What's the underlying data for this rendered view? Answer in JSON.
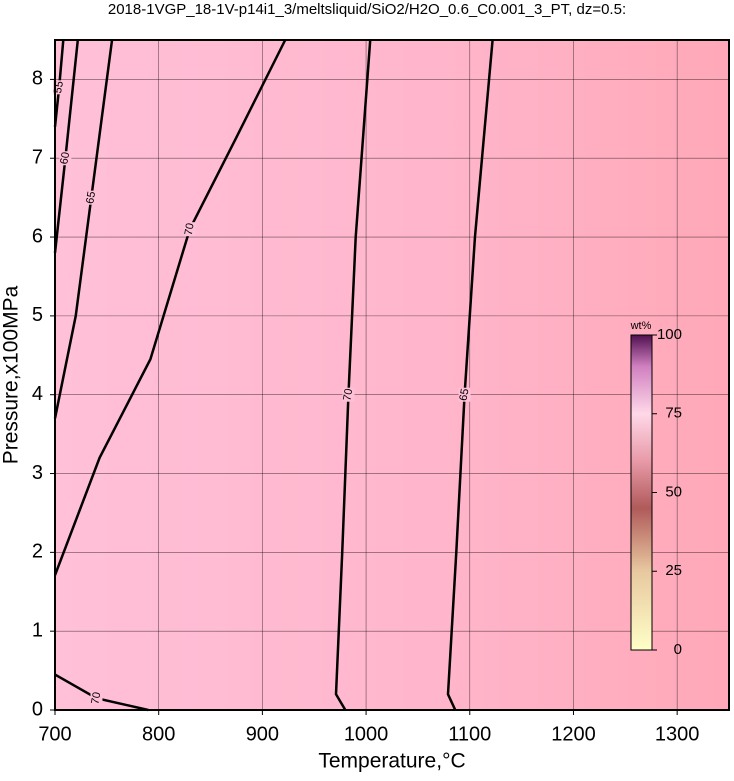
{
  "chart_data": {
    "type": "contour",
    "title": "2018-1VGP_18-1V-p14i1_3/meltsliquid/SiO2/H2O_0.6_C0.001_3_PT, dz=0.5:",
    "xlabel": "Temperature,°C",
    "ylabel": "Pressure,x100MPa",
    "xlim": [
      700,
      1350
    ],
    "ylim": [
      0,
      8.5
    ],
    "xticks": [
      700,
      800,
      900,
      1000,
      1100,
      1200,
      1300
    ],
    "yticks": [
      0,
      1,
      2,
      3,
      4,
      5,
      6,
      7,
      8
    ],
    "grid": true,
    "contours": [
      {
        "level": 70,
        "x": [
          980,
          971,
          977,
          983,
          990,
          1004
        ],
        "y": [
          0,
          0.2,
          2,
          4,
          6,
          8.5
        ]
      },
      {
        "level": 65,
        "x": [
          1086,
          1079,
          1087,
          1095,
          1105,
          1122
        ],
        "y": [
          0,
          0.2,
          2,
          4,
          6,
          8.5
        ]
      },
      {
        "level": 70,
        "x": [
          700,
          743,
          792,
          830,
          874,
          922
        ],
        "y": [
          1.71,
          3.2,
          4.45,
          6.1,
          7.24,
          8.5
        ]
      },
      {
        "level": 65,
        "x": [
          700,
          720,
          735,
          745,
          755
        ],
        "y": [
          3.7,
          5.0,
          6.5,
          7.5,
          8.5
        ]
      },
      {
        "level": 70,
        "x": [
          700,
          740,
          790
        ],
        "y": [
          0.45,
          0.15,
          0
        ]
      },
      {
        "level": 60,
        "x": [
          700,
          710,
          722
        ],
        "y": [
          5.8,
          7,
          8.5
        ]
      },
      {
        "level": 55,
        "x": [
          700,
          704,
          708
        ],
        "y": [
          7.4,
          7.9,
          8.5
        ]
      }
    ],
    "colorbar": {
      "label": "wt%",
      "lim": [
        0,
        100
      ],
      "ticks": [
        0,
        25,
        50,
        75,
        100
      ]
    }
  }
}
